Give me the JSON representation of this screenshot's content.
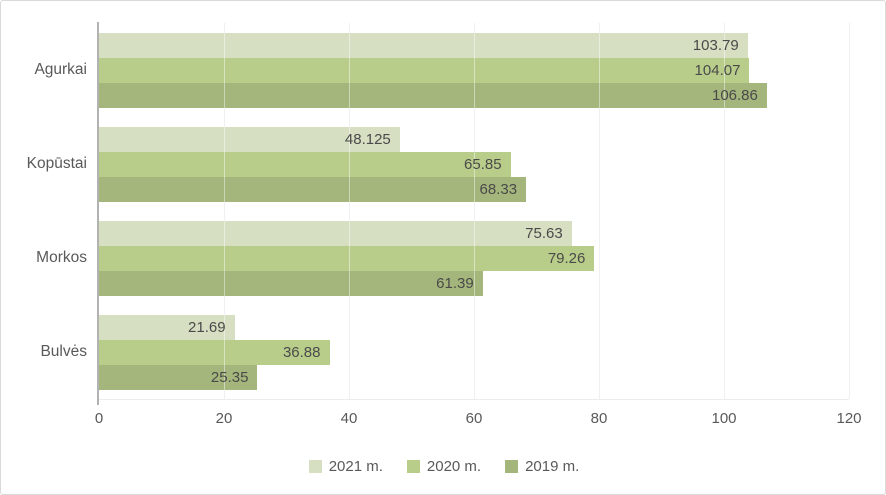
{
  "chart_data": {
    "type": "bar",
    "orientation": "horizontal",
    "title": "",
    "categories": [
      "Agurkai",
      "Kopūstai",
      "Morkos",
      "Bulvės"
    ],
    "series": [
      {
        "name": "2021 m.",
        "color": "#d6dfc2",
        "values": [
          103.79,
          48.125,
          75.63,
          21.69
        ]
      },
      {
        "name": "2020 m.",
        "color": "#b9cd8b",
        "values": [
          104.07,
          65.85,
          79.26,
          36.88
        ]
      },
      {
        "name": "2019 m.",
        "color": "#a4b67c",
        "values": [
          106.86,
          68.33,
          61.39,
          25.35
        ]
      }
    ],
    "x_axis": {
      "min": 0,
      "max": 120,
      "step": 20,
      "tick_labels": [
        "0",
        "20",
        "40",
        "60",
        "80",
        "100",
        "120"
      ]
    },
    "legend_position": "bottom",
    "grid": true,
    "style": {
      "gridline_color": "#e4e4e4",
      "axis_line_color": "#b2b2b2",
      "tick_label_color": "#595959",
      "value_label_color": "#4a4a4a",
      "border_color": "#d9d9d9",
      "background": "#ffffff"
    }
  }
}
